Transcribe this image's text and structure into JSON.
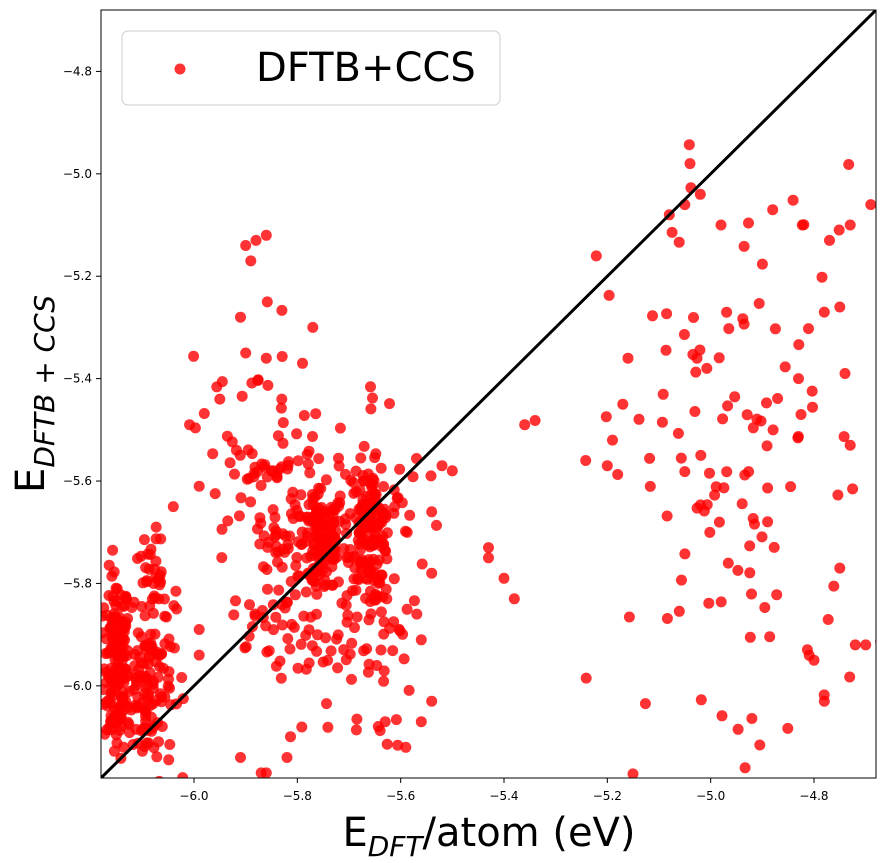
{
  "chart_data": {
    "type": "scatter",
    "xlabel": {
      "main": "E",
      "sub": "DFT",
      "rest": "/atom (eV)"
    },
    "ylabel": {
      "main": "E",
      "sub": "DFTB + CCS"
    },
    "xlim": [
      -6.18,
      -4.68
    ],
    "ylim": [
      -6.18,
      -4.68
    ],
    "xticks": [
      -6.0,
      -5.8,
      -5.6,
      -5.4,
      -5.2,
      -5.0,
      -4.8
    ],
    "yticks": [
      -6.0,
      -5.8,
      -5.6,
      -5.4,
      -5.2,
      -5.0,
      -4.8
    ],
    "tick_labels": [
      "−6.0",
      "−5.8",
      "−5.6",
      "−5.4",
      "−5.2",
      "−5.0",
      "−4.8"
    ],
    "grid": false,
    "reference_line": {
      "x": [
        -6.18,
        -4.68
      ],
      "y": [
        -6.18,
        -4.68
      ],
      "color": "#000000"
    },
    "legend": {
      "placement": "top-left"
    },
    "series": [
      {
        "name": "DFTB+CCS",
        "color": "#ff0000",
        "alpha": 0.8,
        "clusters": [
          {
            "cx": -6.15,
            "cy": -5.96,
            "sx": 0.012,
            "sy": 0.09,
            "n": 160
          },
          {
            "cx": -6.09,
            "cy": -6.0,
            "sx": 0.025,
            "sy": 0.09,
            "n": 130
          },
          {
            "cx": -6.08,
            "cy": -5.83,
            "sx": 0.025,
            "sy": 0.06,
            "n": 40
          },
          {
            "cx": -5.75,
            "cy": -5.72,
            "sx": 0.02,
            "sy": 0.05,
            "n": 110
          },
          {
            "cx": -5.66,
            "cy": -5.69,
            "sx": 0.02,
            "sy": 0.06,
            "n": 130
          },
          {
            "cx": -5.8,
            "cy": -5.7,
            "sx": 0.07,
            "sy": 0.14,
            "n": 90
          },
          {
            "cx": -5.65,
            "cy": -5.7,
            "sx": 0.05,
            "sy": 0.14,
            "n": 70
          },
          {
            "cx": -5.85,
            "cy": -5.85,
            "sx": 0.05,
            "sy": 0.12,
            "n": 50
          },
          {
            "cx": -5.68,
            "cy": -5.95,
            "sx": 0.05,
            "sy": 0.09,
            "n": 40
          },
          {
            "cx": -5.9,
            "cy": -5.55,
            "sx": 0.05,
            "sy": 0.14,
            "n": 40
          },
          {
            "cx": -4.95,
            "cy": -5.6,
            "sx": 0.13,
            "sy": 0.3,
            "n": 130
          }
        ],
        "extra_points": [
          [
            -5.04,
            -4.98
          ],
          [
            -5.02,
            -5.04
          ],
          [
            -4.88,
            -5.07
          ],
          [
            -4.69,
            -5.06
          ],
          [
            -5.9,
            -5.14
          ],
          [
            -5.88,
            -5.13
          ],
          [
            -5.86,
            -5.12
          ],
          [
            -5.89,
            -5.17
          ],
          [
            -4.98,
            -5.1
          ],
          [
            -4.77,
            -5.13
          ],
          [
            -4.73,
            -5.1
          ],
          [
            -5.08,
            -5.08
          ],
          [
            -5.05,
            -5.06
          ],
          [
            -5.91,
            -5.28
          ],
          [
            -5.77,
            -5.3
          ],
          [
            -5.9,
            -5.35
          ],
          [
            -5.86,
            -5.36
          ],
          [
            -5.79,
            -5.37
          ],
          [
            -5.95,
            -5.44
          ],
          [
            -5.83,
            -5.44
          ],
          [
            -5.36,
            -5.49
          ],
          [
            -5.52,
            -5.57
          ],
          [
            -5.5,
            -5.58
          ],
          [
            -5.54,
            -5.66
          ],
          [
            -5.99,
            -5.61
          ],
          [
            -6.04,
            -5.65
          ],
          [
            -5.43,
            -5.73
          ],
          [
            -5.43,
            -5.75
          ],
          [
            -5.4,
            -5.79
          ],
          [
            -5.38,
            -5.83
          ],
          [
            -5.54,
            -5.78
          ],
          [
            -5.56,
            -5.91
          ],
          [
            -5.99,
            -5.89
          ],
          [
            -5.99,
            -5.94
          ],
          [
            -6.19,
            -5.94
          ],
          [
            -5.91,
            -6.14
          ],
          [
            -5.87,
            -6.17
          ],
          [
            -5.86,
            -6.17
          ],
          [
            -5.82,
            -6.14
          ],
          [
            -5.63,
            -6.07
          ],
          [
            -5.59,
            -6.12
          ],
          [
            -5.56,
            -6.07
          ],
          [
            -5.54,
            -6.03
          ],
          [
            -4.72,
            -5.92
          ],
          [
            -4.7,
            -5.92
          ],
          [
            -5.2,
            -5.57
          ],
          [
            -5.19,
            -5.52
          ],
          [
            -5.17,
            -5.45
          ],
          [
            -5.16,
            -5.36
          ],
          [
            -4.83,
            -5.4
          ],
          [
            -4.78,
            -5.27
          ],
          [
            -4.75,
            -5.26
          ],
          [
            -4.74,
            -5.39
          ],
          [
            -4.73,
            -5.53
          ],
          [
            -4.75,
            -5.77
          ],
          [
            -4.78,
            -6.03
          ],
          [
            -4.8,
            -5.95
          ]
        ]
      }
    ]
  }
}
